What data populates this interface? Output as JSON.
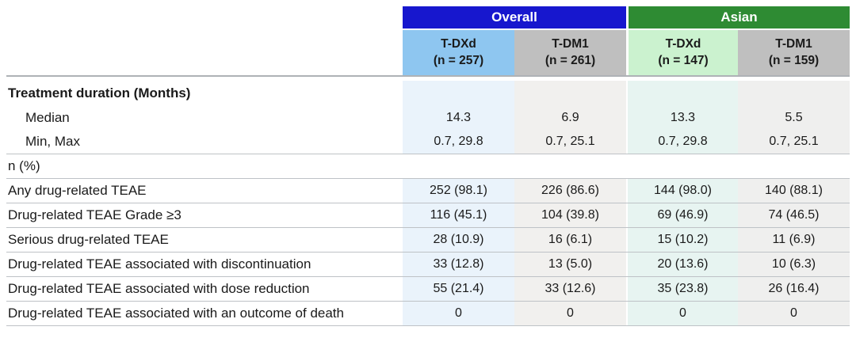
{
  "colors": {
    "overall_header_bg": "#1717ce",
    "asian_header_bg": "#2e8b33",
    "tdxd_overall_header_bg": "#8ec6f0",
    "tdm1_header_bg": "#bfbfbf",
    "tdxd_asian_header_bg": "#cbf2cf",
    "col_tint_overall_tdxd": "#eaf3fb",
    "col_tint_overall_tdm1": "#f1f0ee",
    "col_tint_asian_tdxd": "#e7f4f1",
    "col_tint_asian_tdm1": "#efefee",
    "rule_line": "#bec2c6",
    "header_text": "#ffffff",
    "body_text": "#1a1a1a"
  },
  "chart_data": {
    "type": "table",
    "column_groups": [
      {
        "label": "Overall",
        "bg": "#1717ce"
      },
      {
        "label": "Asian",
        "bg": "#2e8b33"
      }
    ],
    "columns": [
      {
        "group": "Overall",
        "drug": "T-DXd",
        "n_label": "(n = 257)",
        "header_bg": "#8ec6f0",
        "body_bg": "#eaf3fb"
      },
      {
        "group": "Overall",
        "drug": "T-DM1",
        "n_label": "(n = 261)",
        "header_bg": "#bfbfbf",
        "body_bg": "#f1f0ee"
      },
      {
        "group": "Asian",
        "drug": "T-DXd",
        "n_label": "(n = 147)",
        "header_bg": "#cbf2cf",
        "body_bg": "#e7f4f1"
      },
      {
        "group": "Asian",
        "drug": "T-DM1",
        "n_label": "(n = 159)",
        "header_bg": "#bfbfbf",
        "body_bg": "#efefee"
      }
    ],
    "rows": [
      {
        "label": "Treatment duration (Months)",
        "bold": true,
        "indent": false,
        "tint": true,
        "rule": false,
        "values": [
          "",
          "",
          "",
          ""
        ]
      },
      {
        "label": "Median",
        "bold": false,
        "indent": true,
        "tint": true,
        "rule": false,
        "values": [
          "14.3",
          "6.9",
          "13.3",
          "5.5"
        ]
      },
      {
        "label": "Min, Max",
        "bold": false,
        "indent": true,
        "tint": true,
        "rule": true,
        "values": [
          "0.7, 29.8",
          "0.7, 25.1",
          "0.7, 29.8",
          "0.7, 25.1"
        ]
      },
      {
        "label": "n (%)",
        "bold": false,
        "indent": false,
        "tint": false,
        "rule": true,
        "values": [
          "",
          "",
          "",
          ""
        ]
      },
      {
        "label": "Any drug-related TEAE",
        "bold": false,
        "indent": false,
        "tint": true,
        "rule": true,
        "values": [
          "252 (98.1)",
          "226 (86.6)",
          "144 (98.0)",
          "140 (88.1)"
        ]
      },
      {
        "label": "Drug-related TEAE Grade ≥3",
        "bold": false,
        "indent": false,
        "tint": true,
        "rule": true,
        "values": [
          "116 (45.1)",
          "104 (39.8)",
          "69 (46.9)",
          "74 (46.5)"
        ]
      },
      {
        "label": "Serious drug-related TEAE",
        "bold": false,
        "indent": false,
        "tint": true,
        "rule": true,
        "values": [
          "28 (10.9)",
          "16 (6.1)",
          "15 (10.2)",
          "11 (6.9)"
        ]
      },
      {
        "label": "Drug-related TEAE associated with discontinuation",
        "bold": false,
        "indent": false,
        "tint": true,
        "rule": true,
        "values": [
          "33 (12.8)",
          "13 (5.0)",
          "20 (13.6)",
          "10 (6.3)"
        ]
      },
      {
        "label": "Drug-related TEAE associated with dose reduction",
        "bold": false,
        "indent": false,
        "tint": true,
        "rule": true,
        "values": [
          "55 (21.4)",
          "33 (12.6)",
          "35 (23.8)",
          "26 (16.4)"
        ]
      },
      {
        "label": "Drug-related TEAE associated with an outcome of death",
        "bold": false,
        "indent": false,
        "tint": true,
        "rule": true,
        "values": [
          "0",
          "0",
          "0",
          "0"
        ]
      }
    ]
  }
}
